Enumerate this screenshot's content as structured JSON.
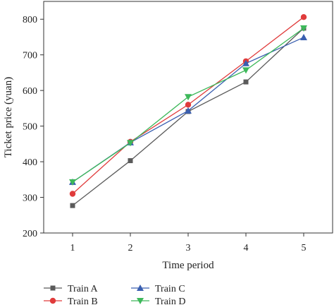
{
  "chart_data": {
    "type": "line",
    "xlabel": "Time period",
    "ylabel": "Ticket price (yuan)",
    "x": [
      1,
      2,
      3,
      4,
      5
    ],
    "xlim": [
      0.5,
      5.5
    ],
    "ylim": [
      200,
      850
    ],
    "yticks": [
      200,
      300,
      400,
      500,
      600,
      700,
      800
    ],
    "grid": false,
    "legend_position": "bottom",
    "series": [
      {
        "name": "Train A",
        "color": "#5a5a5a",
        "marker": "square",
        "values": [
          277,
          403,
          541,
          624,
          775
        ]
      },
      {
        "name": "Train B",
        "color": "#e03b3b",
        "marker": "circle",
        "values": [
          310,
          456,
          560,
          682,
          806
        ]
      },
      {
        "name": "Train C",
        "color": "#3a5fb0",
        "marker": "triangle-up",
        "values": [
          343,
          454,
          543,
          676,
          749
        ]
      },
      {
        "name": "Train D",
        "color": "#3db85a",
        "marker": "triangle-down",
        "values": [
          343,
          453,
          582,
          657,
          775
        ]
      }
    ]
  }
}
